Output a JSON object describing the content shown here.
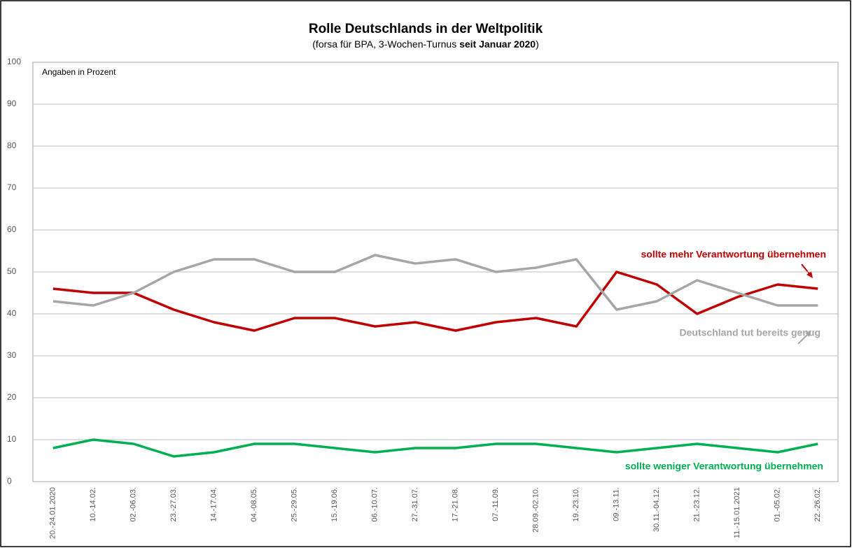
{
  "chart_data": {
    "type": "line",
    "title": "Rolle Deutschlands in der Weltpolitik",
    "subtitle": [
      {
        "text": "(forsa für BPA, 3-Wochen-Turnus ",
        "bold": false
      },
      {
        "text": "seit Januar 2020",
        "bold": true
      },
      {
        "text": ")",
        "bold": false
      }
    ],
    "annotation": "Angaben in Prozent",
    "categories": [
      "20.-24.01.2020",
      "10.-14.02.",
      "02.-06.03.",
      "23.-27.03.",
      "14.-17.04.",
      "04.-08.05.",
      "25.-29.05.",
      "15.-19.06.",
      "06.-10.07.",
      "27.-31.07.",
      "17.-21.08.",
      "07.-11.09.",
      "28.09.-02.10.",
      "19.-23.10.",
      "09.-13.11.",
      "30.11.-04.12.",
      "21.-23.12.",
      "11.-15.01.2021",
      "01.-05.02.",
      "22.-26.02."
    ],
    "series": [
      {
        "name": "sollte mehr Verantwortung übernehmen",
        "color": "#c00000",
        "values": [
          46,
          45,
          45,
          41,
          38,
          36,
          39,
          39,
          37,
          38,
          36,
          38,
          39,
          37,
          50,
          47,
          40,
          44,
          47,
          46
        ]
      },
      {
        "name": "Deutschland tut bereits genug",
        "color": "#a6a6a6",
        "values": [
          43,
          42,
          45,
          50,
          53,
          53,
          50,
          50,
          54,
          52,
          53,
          50,
          51,
          53,
          41,
          43,
          48,
          45,
          42,
          42
        ]
      },
      {
        "name": "sollte weniger Verantwortung übernehmen",
        "color": "#00b050",
        "values": [
          8,
          10,
          9,
          6,
          7,
          9,
          9,
          8,
          7,
          8,
          8,
          9,
          9,
          8,
          7,
          8,
          9,
          8,
          7,
          9
        ]
      }
    ],
    "ylim": [
      0,
      100
    ],
    "yticks": [
      0,
      10,
      20,
      30,
      40,
      50,
      60,
      70,
      80,
      90,
      100
    ],
    "grid": true
  }
}
